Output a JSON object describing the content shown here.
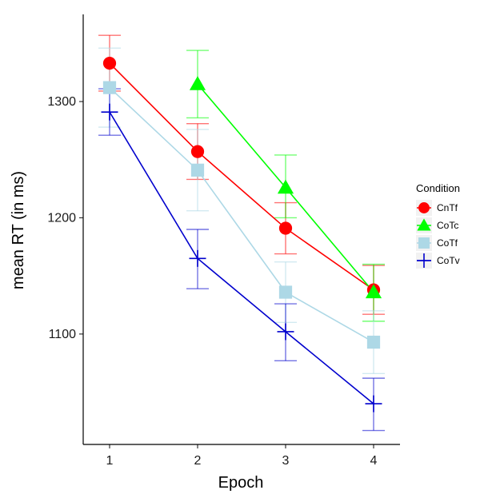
{
  "chart_data": {
    "type": "line",
    "xlabel": "Epoch",
    "ylabel": "mean RT (in ms)",
    "x": [
      1,
      2,
      3,
      4
    ],
    "x_tick_labels": [
      "1",
      "2",
      "3",
      "4"
    ],
    "y_ticks": [
      1100,
      1200,
      1300
    ],
    "y_tick_labels": [
      "1100",
      "1200",
      "1300"
    ],
    "xlim": [
      0.7,
      4.3
    ],
    "ylim": [
      1005,
      1375
    ],
    "grid": false,
    "legend": {
      "title": "Condition",
      "placement": "right"
    },
    "series": [
      {
        "name": "CnTf",
        "color": "#ff0000",
        "marker": "circle",
        "values": [
          1333,
          1257,
          1191,
          1138
        ],
        "error_low": [
          1309,
          1233,
          1169,
          1117
        ],
        "error_high": [
          1357,
          1281,
          1213,
          1159
        ]
      },
      {
        "name": "CoTc",
        "color": "#00ff00",
        "marker": "triangle",
        "values": [
          null,
          1315,
          1226,
          1136
        ],
        "error_low": [
          null,
          1286,
          1200,
          1111
        ],
        "error_high": [
          null,
          1344,
          1254,
          1160
        ]
      },
      {
        "name": "CoTf",
        "color": "#add8e6",
        "marker": "square",
        "values": [
          1312,
          1241,
          1136,
          1093
        ],
        "error_low": [
          1278,
          1206,
          1110,
          1066
        ],
        "error_high": [
          1346,
          1276,
          1162,
          1120
        ]
      },
      {
        "name": "CoTv",
        "color": "#0000cd",
        "marker": "cross",
        "values": [
          1291,
          1165,
          1102,
          1040
        ],
        "error_low": [
          1271,
          1139,
          1077,
          1017
        ],
        "error_high": [
          1311,
          1190,
          1126,
          1062
        ]
      }
    ]
  }
}
